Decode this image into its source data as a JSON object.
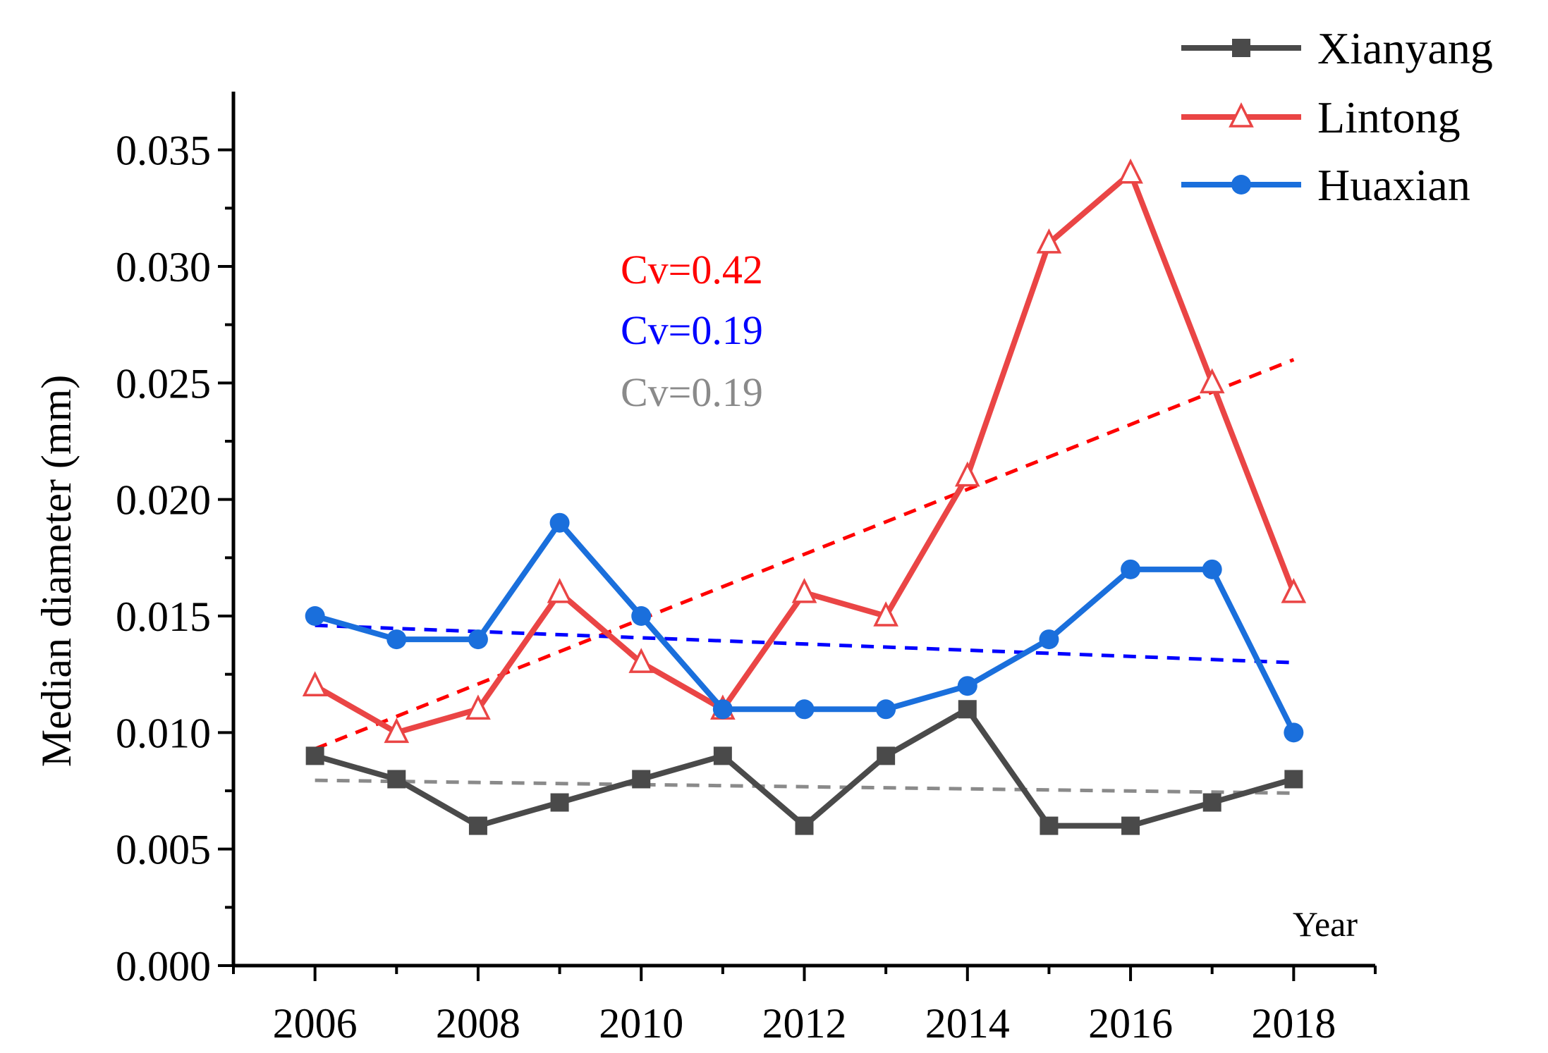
{
  "chart_data": {
    "type": "line",
    "title": "",
    "xlabel": "Year",
    "ylabel": "Median diameter (mm)",
    "xlim": [
      2005,
      2019
    ],
    "ylim": [
      0,
      0.0375
    ],
    "x_ticks": [
      2006,
      2008,
      2010,
      2012,
      2014,
      2016,
      2018
    ],
    "x_tick_labels": [
      "2006",
      "2008",
      "2010",
      "2012",
      "2014",
      "2016",
      "2018"
    ],
    "y_ticks": [
      0,
      0.005,
      0.01,
      0.015,
      0.02,
      0.025,
      0.03,
      0.035
    ],
    "y_tick_labels": [
      "0.000",
      "0.005",
      "0.010",
      "0.015",
      "0.020",
      "0.025",
      "0.030",
      "0.035"
    ],
    "x": [
      2006,
      2007,
      2008,
      2009,
      2010,
      2011,
      2012,
      2013,
      2014,
      2015,
      2016,
      2017,
      2018
    ],
    "series": [
      {
        "name": "Xianyang",
        "color": "#4a4a4a",
        "marker": "square",
        "values": [
          0.009,
          0.008,
          0.006,
          0.007,
          0.008,
          0.009,
          0.006,
          0.009,
          0.011,
          0.006,
          0.006,
          0.007,
          0.008
        ],
        "trend": [
          0.00795,
          0.0074
        ],
        "trend_color": "#8a8a8a"
      },
      {
        "name": "Lintong",
        "color": "#ea4545",
        "marker": "triangle-open",
        "values": [
          0.012,
          0.01,
          0.011,
          0.016,
          0.013,
          0.011,
          0.016,
          0.015,
          0.021,
          0.031,
          0.034,
          0.025,
          0.016
        ],
        "trend": [
          0.0093,
          0.026
        ],
        "trend_color": "#ff0000"
      },
      {
        "name": "Huaxian",
        "color": "#1a6fdc",
        "marker": "circle",
        "values": [
          0.015,
          0.014,
          0.014,
          0.019,
          0.015,
          0.011,
          0.011,
          0.011,
          0.012,
          0.014,
          0.017,
          0.017,
          0.01
        ],
        "trend": [
          0.0146,
          0.013
        ],
        "trend_color": "#0000ff"
      }
    ],
    "annotations": [
      {
        "text": "Cv=0.42",
        "color": "#ff0000"
      },
      {
        "text": "Cv=0.19",
        "color": "#0000ff"
      },
      {
        "text": "Cv=0.19",
        "color": "#8a8a8a"
      }
    ],
    "legend_position": "top-right"
  }
}
